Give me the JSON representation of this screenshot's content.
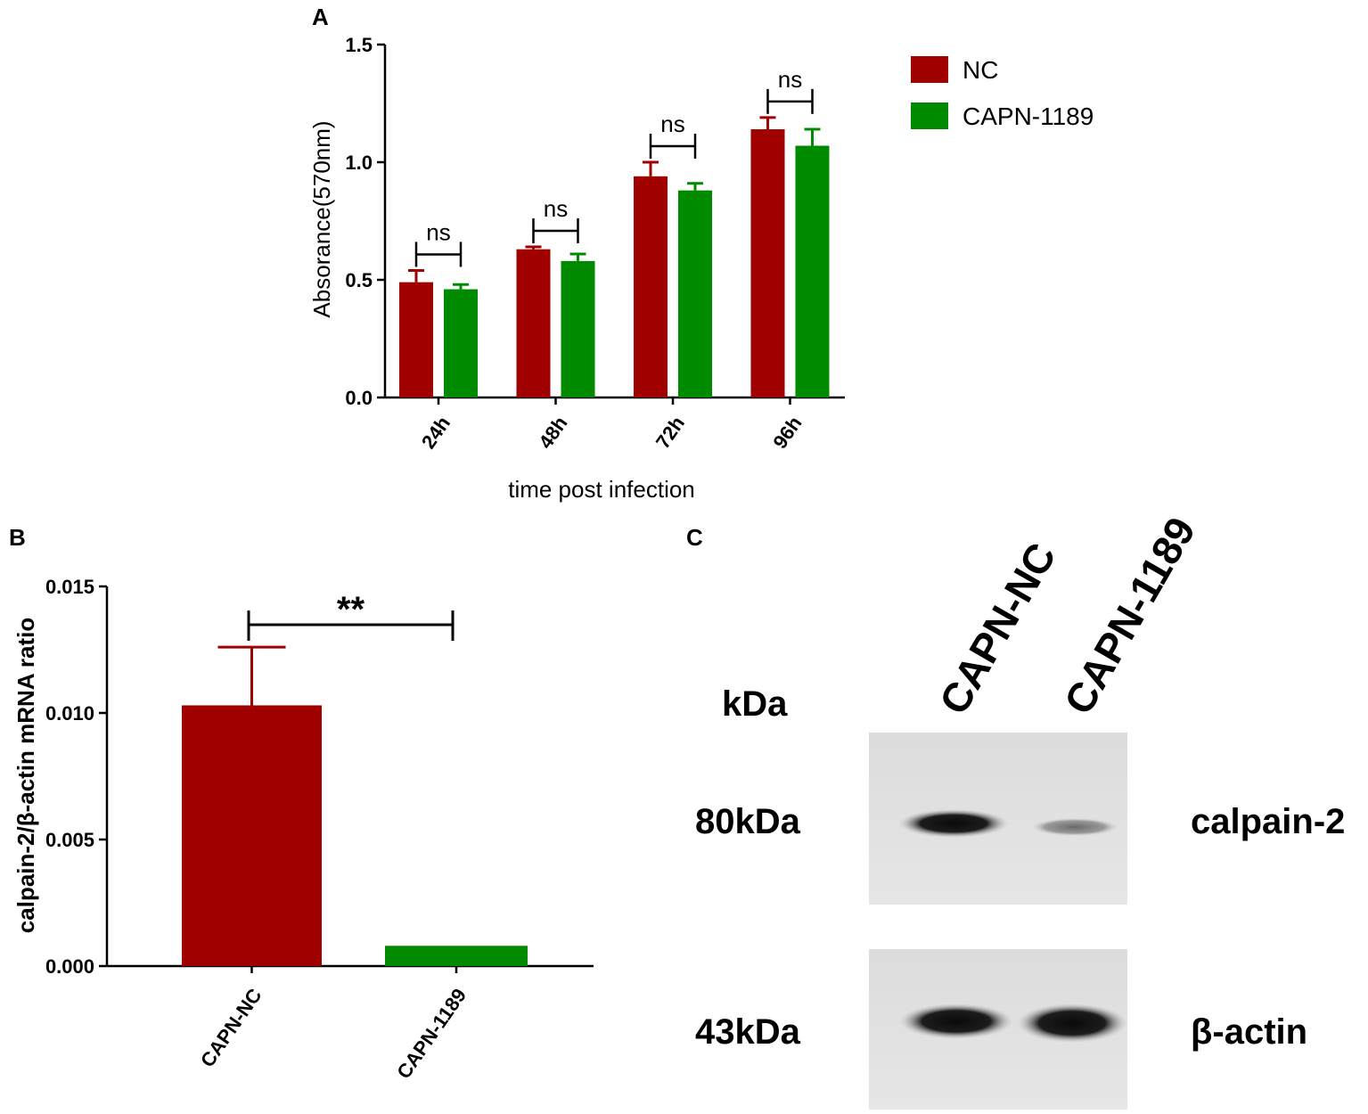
{
  "colors": {
    "nc": "#a00000",
    "capn": "#008a00",
    "axis": "#000000"
  },
  "panels": {
    "a": "A",
    "b": "B",
    "c": "C"
  },
  "chart_data": [
    {
      "panel": "A",
      "type": "bar",
      "xlabel": "time post infection",
      "ylabel": "Absorance(570nm)",
      "categories": [
        "24h",
        "48h",
        "72h",
        "96h"
      ],
      "ylim": [
        0.0,
        1.5
      ],
      "yticks": [
        "0.0",
        "0.5",
        "1.0",
        "1.5"
      ],
      "yticks_values": [
        0.0,
        0.5,
        1.0,
        1.5
      ],
      "series": [
        {
          "name": "NC",
          "color": "#a00000",
          "values": [
            0.49,
            0.63,
            0.94,
            1.14
          ],
          "errors": [
            0.05,
            0.01,
            0.06,
            0.05
          ]
        },
        {
          "name": "CAPN-1189",
          "color": "#008a00",
          "values": [
            0.46,
            0.58,
            0.88,
            1.07
          ],
          "errors": [
            0.02,
            0.03,
            0.03,
            0.07
          ]
        }
      ],
      "annotations": [
        "ns",
        "ns",
        "ns",
        "ns"
      ],
      "legend": "top-right"
    },
    {
      "panel": "B",
      "type": "bar",
      "xlabel": "",
      "ylabel": "calpain-2/β-actin mRNA ratio",
      "categories": [
        "CAPN-NC",
        "CAPN-1189"
      ],
      "ylim": [
        0.0,
        0.015
      ],
      "yticks": [
        "0.000",
        "0.005",
        "0.010",
        "0.015"
      ],
      "yticks_values": [
        0.0,
        0.005,
        0.01,
        0.015
      ],
      "colors": [
        "#a00000",
        "#008a00"
      ],
      "values": [
        0.0103,
        0.0008
      ],
      "errors": [
        0.0023,
        0.0
      ],
      "annotation": "**"
    }
  ],
  "blot": {
    "unit_label": "kDa",
    "lanes": [
      "CAPN-NC",
      "CAPN-1189"
    ],
    "bands": [
      {
        "size": "80kDa",
        "protein": "calpain-2"
      },
      {
        "size": "43kDa",
        "protein": "β-actin"
      }
    ]
  }
}
